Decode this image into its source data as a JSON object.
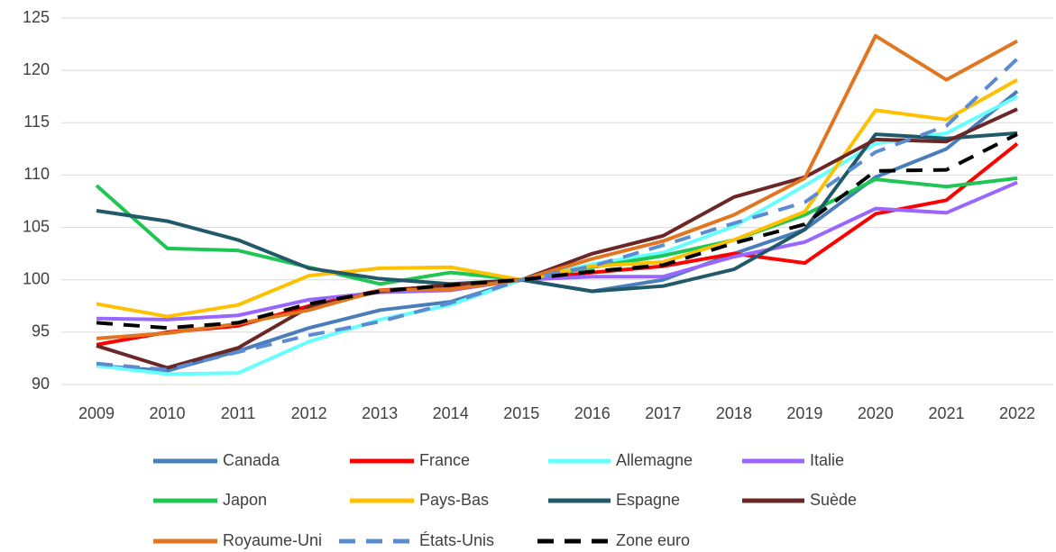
{
  "chart_data": {
    "type": "line",
    "categories": [
      "2009",
      "2010",
      "2011",
      "2012",
      "2013",
      "2014",
      "2015",
      "2016",
      "2017",
      "2018",
      "2019",
      "2020",
      "2021",
      "2022"
    ],
    "ylim": [
      90,
      125
    ],
    "yticks": [
      90,
      95,
      100,
      105,
      110,
      115,
      120,
      125
    ],
    "grid": true,
    "series": [
      {
        "name": "Canada",
        "color": "#4a7ebb",
        "values": [
          91.8,
          91.3,
          93.2,
          95.4,
          97.1,
          97.9,
          100,
          98.9,
          100.0,
          102.5,
          104.8,
          109.8,
          112.5,
          118.0
        ]
      },
      {
        "name": "France",
        "color": "#ff0000",
        "values": [
          93.8,
          95.0,
          95.6,
          97.5,
          99.0,
          99.4,
          100,
          100.7,
          101.3,
          102.5,
          101.6,
          106.3,
          107.6,
          113.0
        ]
      },
      {
        "name": "Allemagne",
        "color": "#66ffff",
        "values": [
          91.8,
          91.0,
          91.1,
          94.1,
          96.2,
          97.6,
          100,
          101.5,
          102.6,
          105.1,
          109.0,
          113.0,
          114.0,
          117.5
        ]
      },
      {
        "name": "Italie",
        "color": "#9966ff",
        "values": [
          96.3,
          96.2,
          96.6,
          98.1,
          98.8,
          99.0,
          100,
          100.3,
          100.3,
          102.2,
          103.6,
          106.8,
          106.4,
          109.3
        ]
      },
      {
        "name": "Japon",
        "color": "#1fc653",
        "values": [
          109.0,
          103.0,
          102.8,
          101.2,
          99.6,
          100.7,
          100,
          101.2,
          102.3,
          103.8,
          106.2,
          109.6,
          108.9,
          109.7
        ]
      },
      {
        "name": "Pays-Bas",
        "color": "#ffc000",
        "values": [
          97.7,
          96.5,
          97.6,
          100.4,
          101.1,
          101.2,
          100,
          101.3,
          101.7,
          103.8,
          106.5,
          116.2,
          115.3,
          119.1
        ]
      },
      {
        "name": "Espagne",
        "color": "#215968",
        "values": [
          106.6,
          105.6,
          103.8,
          101.1,
          100.1,
          99.6,
          100,
          98.9,
          99.4,
          101.0,
          104.8,
          113.9,
          113.5,
          114.0
        ]
      },
      {
        "name": "Suède",
        "color": "#6b2626",
        "values": [
          93.7,
          91.6,
          93.5,
          97.4,
          98.9,
          99.5,
          100,
          102.5,
          104.2,
          107.9,
          109.8,
          113.4,
          113.2,
          116.3
        ]
      },
      {
        "name": "Royaume-Uni",
        "color": "#e2751f",
        "values": [
          94.4,
          94.9,
          95.8,
          97.1,
          99.0,
          99.1,
          100,
          102.0,
          103.7,
          106.2,
          109.7,
          123.3,
          119.1,
          122.8
        ]
      },
      {
        "name": "États-Unis",
        "color": "#5b8bd0",
        "dash": "dashed",
        "values": [
          92.0,
          91.4,
          93.1,
          94.7,
          96.0,
          97.8,
          100,
          101.3,
          103.3,
          105.4,
          107.4,
          112.2,
          114.7,
          121.1
        ]
      },
      {
        "name": "Zone euro",
        "color": "#000000",
        "dash": "dashed",
        "values": [
          95.9,
          95.4,
          95.9,
          97.7,
          98.9,
          99.5,
          100,
          100.8,
          101.4,
          103.5,
          105.3,
          110.4,
          110.5,
          113.9
        ]
      }
    ]
  }
}
